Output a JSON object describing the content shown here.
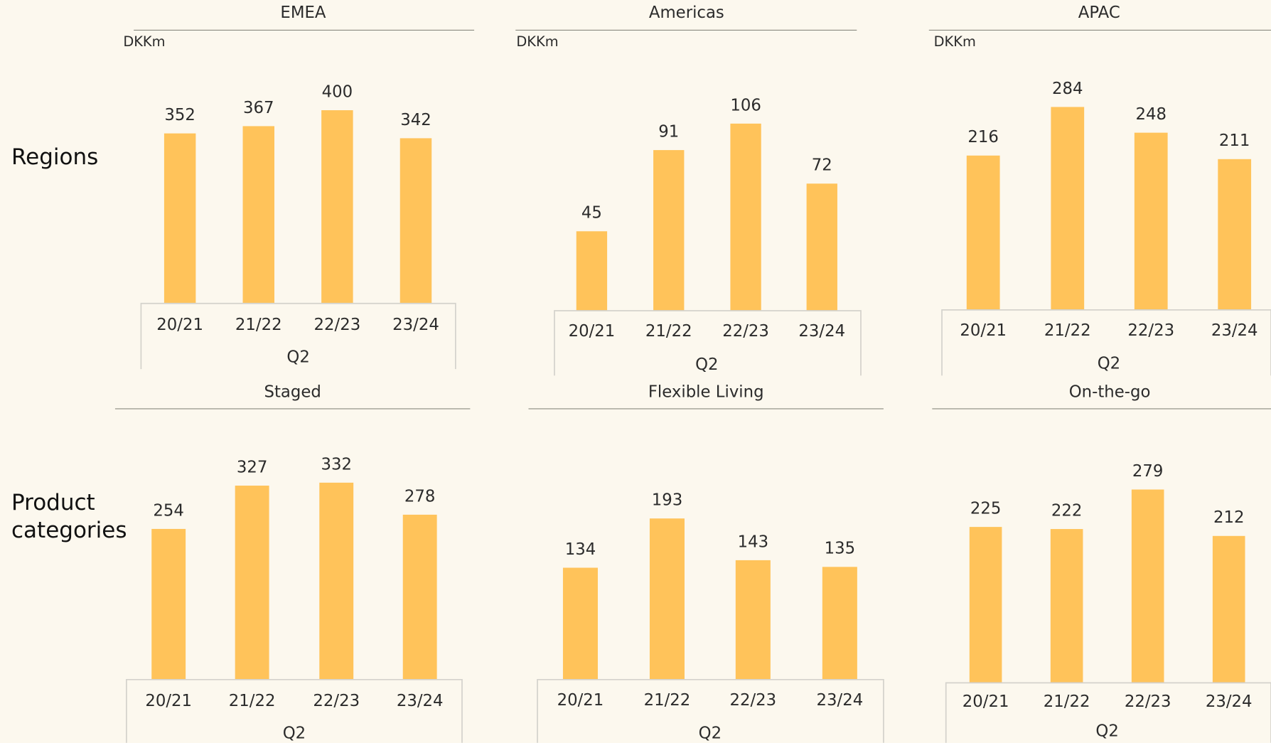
{
  "row_labels": [
    "Regions",
    "Product categories"
  ],
  "chart_data": [
    {
      "type": "bar",
      "title": "EMEA",
      "unit": "DKKm",
      "group": "Q2",
      "categories": [
        "20/21",
        "21/22",
        "22/23",
        "23/24"
      ],
      "values": [
        352,
        367,
        400,
        342
      ],
      "color": "#ffc35a",
      "ylim": [
        0,
        460
      ]
    },
    {
      "type": "bar",
      "title": "Americas",
      "unit": "DKKm",
      "group": "Q2",
      "categories": [
        "20/21",
        "21/22",
        "22/23",
        "23/24"
      ],
      "values": [
        45,
        91,
        106,
        72
      ],
      "color": "#ffc35a",
      "ylim": [
        0,
        130
      ]
    },
    {
      "type": "bar",
      "title": "APAC",
      "unit": "DKKm",
      "group": "Q2",
      "categories": [
        "20/21",
        "21/22",
        "22/23",
        "23/24"
      ],
      "values": [
        216,
        284,
        248,
        211
      ],
      "color": "#ffc35a",
      "ylim": [
        0,
        320
      ]
    },
    {
      "type": "bar",
      "title": "Staged",
      "group": "Q2",
      "categories": [
        "20/21",
        "21/22",
        "22/23",
        "23/24"
      ],
      "values": [
        254,
        327,
        332,
        278
      ],
      "color": "#ffc35a",
      "ylim": [
        0,
        380
      ]
    },
    {
      "type": "bar",
      "title": "Flexible Living",
      "group": "Q2",
      "categories": [
        "20/21",
        "21/22",
        "22/23",
        "23/24"
      ],
      "values": [
        134,
        193,
        143,
        135
      ],
      "color": "#ffc35a",
      "ylim": [
        0,
        270
      ]
    },
    {
      "type": "bar",
      "title": "On-the-go",
      "group": "Q2",
      "categories": [
        "20/21",
        "21/22",
        "22/23",
        "23/24"
      ],
      "values": [
        225,
        222,
        279,
        212
      ],
      "color": "#ffc35a",
      "ylim": [
        0,
        330
      ]
    }
  ]
}
